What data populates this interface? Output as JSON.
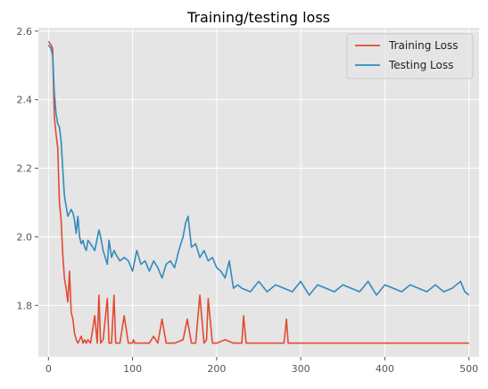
{
  "chart_data": {
    "type": "line",
    "title": "Training/testing loss",
    "xlabel": "",
    "ylabel": "",
    "xlim": [
      -12,
      512
    ],
    "ylim": [
      1.65,
      2.61
    ],
    "xticks": [
      0,
      100,
      200,
      300,
      400,
      500
    ],
    "yticks": [
      1.8,
      2.0,
      2.2,
      2.4,
      2.6
    ],
    "xtick_labels": [
      "0",
      "100",
      "200",
      "300",
      "400",
      "500"
    ],
    "ytick_labels": [
      "1.8",
      "2.0",
      "2.2",
      "2.4",
      "2.6"
    ],
    "grid": true,
    "legend_position": "top-right",
    "series": [
      {
        "name": "Training Loss",
        "color": "#e24a33",
        "x": [
          0,
          3,
          5,
          7,
          9,
          11,
          13,
          15,
          17,
          19,
          21,
          23,
          25,
          27,
          29,
          31,
          33,
          35,
          37,
          39,
          41,
          43,
          45,
          47,
          50,
          55,
          58,
          60,
          62,
          65,
          70,
          72,
          75,
          78,
          80,
          85,
          90,
          95,
          100,
          101,
          103,
          110,
          120,
          125,
          130,
          135,
          140,
          150,
          160,
          165,
          170,
          175,
          180,
          185,
          188,
          190,
          195,
          200,
          210,
          220,
          230,
          232,
          235,
          240,
          250,
          280,
          283,
          285,
          290,
          300,
          330,
          350,
          400,
          450,
          500
        ],
        "y": [
          2.57,
          2.56,
          2.55,
          2.35,
          2.3,
          2.26,
          2.1,
          2.05,
          1.95,
          1.88,
          1.85,
          1.81,
          1.9,
          1.78,
          1.76,
          1.72,
          1.7,
          1.69,
          1.7,
          1.71,
          1.69,
          1.7,
          1.69,
          1.7,
          1.69,
          1.77,
          1.69,
          1.83,
          1.69,
          1.7,
          1.82,
          1.69,
          1.69,
          1.83,
          1.69,
          1.69,
          1.77,
          1.69,
          1.69,
          1.7,
          1.69,
          1.69,
          1.69,
          1.71,
          1.69,
          1.76,
          1.69,
          1.69,
          1.7,
          1.76,
          1.69,
          1.69,
          1.83,
          1.69,
          1.7,
          1.82,
          1.69,
          1.69,
          1.7,
          1.69,
          1.69,
          1.77,
          1.69,
          1.69,
          1.69,
          1.69,
          1.76,
          1.69,
          1.69,
          1.69,
          1.69,
          1.69,
          1.69,
          1.69,
          1.69
        ]
      },
      {
        "name": "Testing Loss",
        "color": "#348abd",
        "x": [
          0,
          3,
          5,
          7,
          9,
          11,
          13,
          15,
          17,
          19,
          21,
          23,
          25,
          27,
          29,
          31,
          33,
          35,
          37,
          39,
          41,
          43,
          45,
          47,
          50,
          55,
          60,
          62,
          65,
          70,
          72,
          75,
          78,
          80,
          85,
          90,
          95,
          100,
          105,
          110,
          115,
          120,
          125,
          130,
          135,
          140,
          145,
          150,
          155,
          160,
          163,
          166,
          170,
          175,
          180,
          185,
          190,
          195,
          200,
          205,
          210,
          215,
          220,
          225,
          230,
          240,
          250,
          260,
          270,
          280,
          290,
          300,
          310,
          320,
          330,
          340,
          350,
          360,
          370,
          380,
          390,
          400,
          410,
          420,
          430,
          440,
          450,
          460,
          470,
          480,
          490,
          495,
          500
        ],
        "y": [
          2.56,
          2.55,
          2.53,
          2.42,
          2.36,
          2.33,
          2.32,
          2.28,
          2.2,
          2.12,
          2.09,
          2.06,
          2.07,
          2.08,
          2.07,
          2.05,
          2.01,
          2.06,
          2.0,
          1.98,
          1.99,
          1.97,
          1.96,
          1.99,
          1.98,
          1.96,
          2.02,
          2.0,
          1.96,
          1.92,
          1.99,
          1.94,
          1.96,
          1.95,
          1.93,
          1.94,
          1.93,
          1.9,
          1.96,
          1.92,
          1.93,
          1.9,
          1.93,
          1.91,
          1.88,
          1.92,
          1.93,
          1.91,
          1.96,
          2.0,
          2.04,
          2.06,
          1.97,
          1.98,
          1.94,
          1.96,
          1.93,
          1.94,
          1.91,
          1.9,
          1.88,
          1.93,
          1.85,
          1.86,
          1.85,
          1.84,
          1.87,
          1.84,
          1.86,
          1.85,
          1.84,
          1.87,
          1.83,
          1.86,
          1.85,
          1.84,
          1.86,
          1.85,
          1.84,
          1.87,
          1.83,
          1.86,
          1.85,
          1.84,
          1.86,
          1.85,
          1.84,
          1.86,
          1.84,
          1.85,
          1.87,
          1.84,
          1.83
        ]
      }
    ]
  }
}
